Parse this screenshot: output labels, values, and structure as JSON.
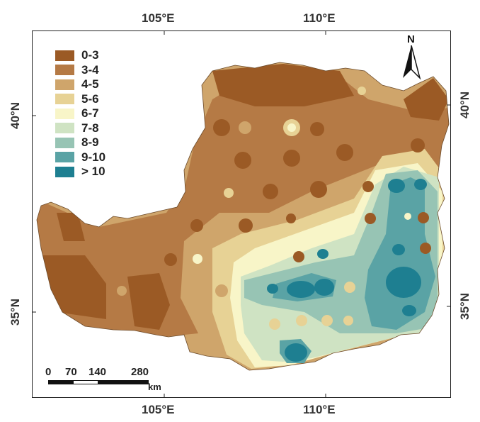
{
  "map": {
    "top_axis_labels": [
      "105°E",
      "110°E"
    ],
    "bottom_axis_labels": [
      "105°E",
      "110°E"
    ],
    "left_axis_labels": [
      "40°N",
      "35°N"
    ],
    "right_axis_labels": [
      "40°N",
      "35°N"
    ],
    "north_label": "N",
    "scale": {
      "ticks": [
        "0",
        "70",
        "140",
        "280"
      ],
      "unit": "km"
    }
  },
  "legend": {
    "items": [
      {
        "label": "0-3",
        "color": "#9b5a25"
      },
      {
        "label": "3-4",
        "color": "#b57a45"
      },
      {
        "label": "4-5",
        "color": "#cfa56b"
      },
      {
        "label": "5-6",
        "color": "#e7d295"
      },
      {
        "label": "6-7",
        "color": "#f8f5c8"
      },
      {
        "label": "7-8",
        "color": "#cfe3c3"
      },
      {
        "label": "8-9",
        "color": "#97c4b4"
      },
      {
        "label": "9-10",
        "color": "#5aa3a5"
      },
      {
        "label": "> 10",
        "color": "#1e7f91"
      }
    ]
  }
}
